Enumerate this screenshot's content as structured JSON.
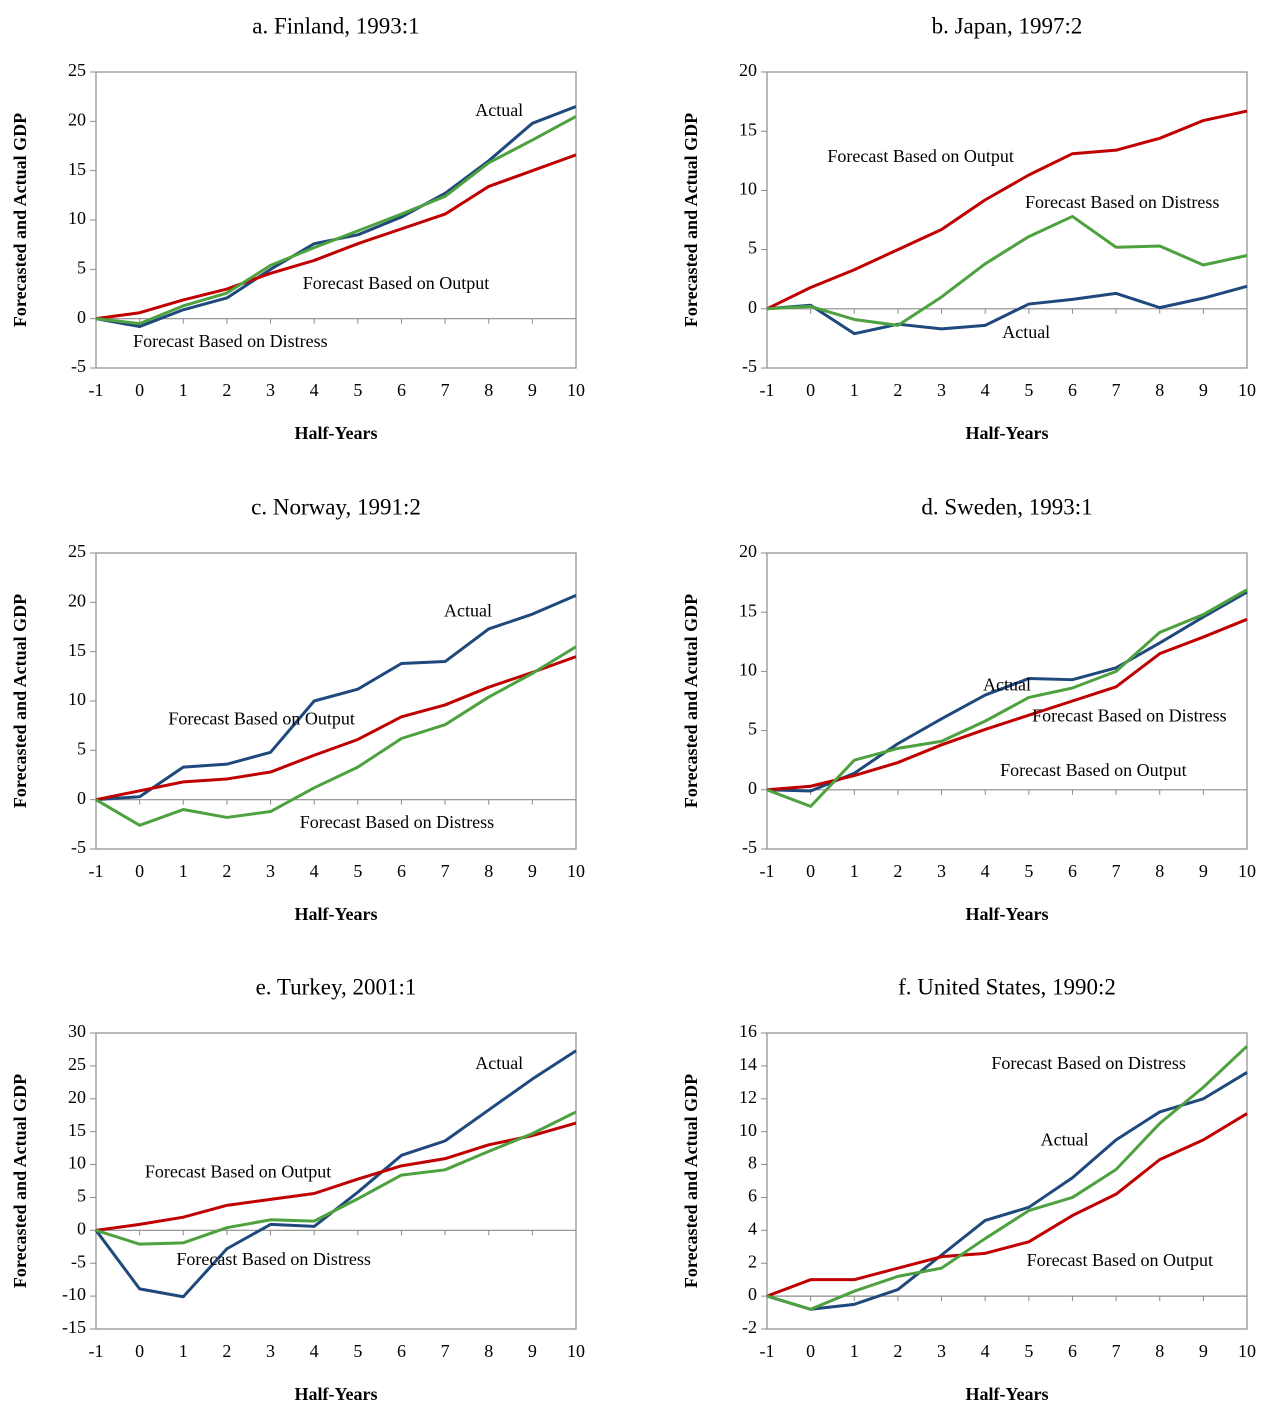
{
  "chart_data": [
    {
      "type": "line",
      "title": "a.  Finland, 1993:1",
      "x_label": "Half-Years",
      "y_label": "Forecasted and Actual GDP",
      "x": [
        -1,
        0,
        1,
        2,
        3,
        4,
        5,
        6,
        7,
        8,
        9,
        10
      ],
      "xlim": [
        -1,
        10
      ],
      "xticks": [
        -1,
        0,
        1,
        2,
        3,
        4,
        5,
        6,
        7,
        8,
        9,
        10
      ],
      "ylim": [
        -5,
        25
      ],
      "yticks": [
        -5,
        0,
        5,
        10,
        15,
        20,
        25
      ],
      "grid": false,
      "series": [
        {
          "name": "Actual",
          "color": "#1f497d",
          "values": [
            0,
            -0.8,
            0.9,
            2.1,
            5.0,
            7.6,
            8.5,
            10.3,
            12.7,
            16.0,
            19.8,
            21.5
          ]
        },
        {
          "name": "Forecast Based on Output",
          "color": "#c00000",
          "values": [
            0,
            0.6,
            1.9,
            3.0,
            4.6,
            5.9,
            7.6,
            9.1,
            10.6,
            13.4,
            15.0,
            16.6
          ]
        },
        {
          "name": "Forecast Based on Distress",
          "color": "#4ea13f",
          "values": [
            0,
            -0.5,
            1.3,
            2.6,
            5.4,
            7.2,
            8.9,
            10.6,
            12.4,
            15.8,
            18.1,
            20.5
          ]
        }
      ]
    },
    {
      "type": "line",
      "title": "b.  Japan, 1997:2",
      "x_label": "Half-Years",
      "y_label": "Forecasted and Actual GDP",
      "x": [
        -1,
        0,
        1,
        2,
        3,
        4,
        5,
        6,
        7,
        8,
        9,
        10
      ],
      "xlim": [
        -1,
        10
      ],
      "xticks": [
        -1,
        0,
        1,
        2,
        3,
        4,
        5,
        6,
        7,
        8,
        9,
        10
      ],
      "ylim": [
        -5,
        20
      ],
      "yticks": [
        -5,
        0,
        5,
        10,
        15,
        20
      ],
      "grid": false,
      "series": [
        {
          "name": "Actual",
          "color": "#1f497d",
          "values": [
            0,
            0.3,
            -2.1,
            -1.3,
            -1.7,
            -1.4,
            0.4,
            0.8,
            1.3,
            0.1,
            0.9,
            1.9
          ]
        },
        {
          "name": "Forecast Based on Output",
          "color": "#c00000",
          "values": [
            0,
            1.8,
            3.3,
            5.0,
            6.7,
            9.2,
            11.3,
            13.1,
            13.4,
            14.4,
            15.9,
            16.7
          ]
        },
        {
          "name": "Forecast Based on Distress",
          "color": "#4ea13f",
          "values": [
            0,
            0.2,
            -0.9,
            -1.4,
            1.0,
            3.8,
            6.1,
            7.8,
            5.2,
            5.3,
            3.7,
            4.5
          ]
        }
      ]
    },
    {
      "type": "line",
      "title": "c.  Norway, 1991:2",
      "x_label": "Half-Years",
      "y_label": "Forecasted and Actual GDP",
      "x": [
        -1,
        0,
        1,
        2,
        3,
        4,
        5,
        6,
        7,
        8,
        9,
        10
      ],
      "xlim": [
        -1,
        10
      ],
      "xticks": [
        -1,
        0,
        1,
        2,
        3,
        4,
        5,
        6,
        7,
        8,
        9,
        10
      ],
      "ylim": [
        -5,
        25
      ],
      "yticks": [
        -5,
        0,
        5,
        10,
        15,
        20,
        25
      ],
      "grid": false,
      "series": [
        {
          "name": "Actual",
          "color": "#1f497d",
          "values": [
            0,
            0.3,
            3.3,
            3.6,
            4.8,
            10.0,
            11.2,
            13.8,
            14.0,
            17.3,
            18.8,
            20.7
          ]
        },
        {
          "name": "Forecast Based on Output",
          "color": "#c00000",
          "values": [
            0,
            0.9,
            1.8,
            2.1,
            2.8,
            4.5,
            6.1,
            8.4,
            9.6,
            11.4,
            12.9,
            14.5
          ]
        },
        {
          "name": "Forecast Based on Distress",
          "color": "#4ea13f",
          "values": [
            0,
            -2.6,
            -1.0,
            -1.8,
            -1.2,
            1.2,
            3.3,
            6.2,
            7.6,
            10.4,
            12.8,
            15.5
          ]
        }
      ]
    },
    {
      "type": "line",
      "title": "d.  Sweden, 1993:1",
      "x_label": "Half-Years",
      "y_label": "Forecasted and Acutal GDP",
      "x": [
        -1,
        0,
        1,
        2,
        3,
        4,
        5,
        6,
        7,
        8,
        9,
        10
      ],
      "xlim": [
        -1,
        10
      ],
      "xticks": [
        -1,
        0,
        1,
        2,
        3,
        4,
        5,
        6,
        7,
        8,
        9,
        10
      ],
      "ylim": [
        -5,
        20
      ],
      "yticks": [
        -5,
        0,
        5,
        10,
        15,
        20
      ],
      "grid": false,
      "series": [
        {
          "name": "Actual",
          "color": "#1f497d",
          "values": [
            0,
            -0.1,
            1.4,
            3.9,
            6.0,
            8.0,
            9.4,
            9.3,
            10.3,
            12.4,
            14.6,
            16.7
          ]
        },
        {
          "name": "Forecast Based on Output",
          "color": "#c00000",
          "values": [
            0,
            0.3,
            1.2,
            2.3,
            3.8,
            5.1,
            6.3,
            7.5,
            8.7,
            11.5,
            12.9,
            14.4
          ]
        },
        {
          "name": "Forecast Based on Distress",
          "color": "#4ea13f",
          "values": [
            0,
            -1.4,
            2.5,
            3.5,
            4.1,
            5.8,
            7.8,
            8.6,
            10.0,
            13.3,
            14.8,
            16.9
          ]
        }
      ]
    },
    {
      "type": "line",
      "title": "e.  Turkey, 2001:1",
      "x_label": "Half-Years",
      "y_label": "Forecasted and Actual GDP",
      "x": [
        -1,
        0,
        1,
        2,
        3,
        4,
        5,
        6,
        7,
        8,
        9,
        10
      ],
      "xlim": [
        -1,
        10
      ],
      "xticks": [
        -1,
        0,
        1,
        2,
        3,
        4,
        5,
        6,
        7,
        8,
        9,
        10
      ],
      "ylim": [
        -15,
        30
      ],
      "yticks": [
        -15,
        -10,
        -5,
        0,
        5,
        10,
        15,
        20,
        25,
        30
      ],
      "grid": false,
      "series": [
        {
          "name": "Actual",
          "color": "#1f497d",
          "values": [
            0,
            -8.9,
            -10.1,
            -2.8,
            0.9,
            0.6,
            5.8,
            11.4,
            13.6,
            18.3,
            23.0,
            27.3
          ]
        },
        {
          "name": "Forecast Based on Output",
          "color": "#c00000",
          "values": [
            0,
            0.9,
            2.0,
            3.8,
            4.7,
            5.6,
            7.8,
            9.8,
            10.9,
            13.0,
            14.4,
            16.3
          ]
        },
        {
          "name": "Forecast Based on Distress",
          "color": "#4ea13f",
          "values": [
            0,
            -2.1,
            -1.9,
            0.4,
            1.6,
            1.4,
            4.8,
            8.4,
            9.2,
            12.0,
            14.7,
            18.0
          ]
        }
      ]
    },
    {
      "type": "line",
      "title": "f.  United States, 1990:2",
      "x_label": "Half-Years",
      "y_label": "Forecasted and Actual GDP",
      "x": [
        -1,
        0,
        1,
        2,
        3,
        4,
        5,
        6,
        7,
        8,
        9,
        10
      ],
      "xlim": [
        -1,
        10
      ],
      "xticks": [
        -1,
        0,
        1,
        2,
        3,
        4,
        5,
        6,
        7,
        8,
        9,
        10
      ],
      "ylim": [
        -2,
        16
      ],
      "yticks": [
        -2,
        0,
        2,
        4,
        6,
        8,
        10,
        12,
        14,
        16
      ],
      "grid": false,
      "series": [
        {
          "name": "Actual",
          "color": "#1f497d",
          "values": [
            0,
            -0.8,
            -0.5,
            0.4,
            2.5,
            4.6,
            5.4,
            7.2,
            9.5,
            11.2,
            12.0,
            13.6
          ]
        },
        {
          "name": "Forecast Based on Output",
          "color": "#c00000",
          "values": [
            0,
            1.0,
            1.0,
            1.7,
            2.4,
            2.6,
            3.3,
            4.9,
            6.2,
            8.3,
            9.5,
            11.1
          ]
        },
        {
          "name": "Forecast Based on Distress",
          "color": "#4ea13f",
          "values": [
            0,
            -0.8,
            0.3,
            1.2,
            1.7,
            3.5,
            5.2,
            6.0,
            7.7,
            10.5,
            12.7,
            15.2
          ]
        }
      ]
    }
  ]
}
